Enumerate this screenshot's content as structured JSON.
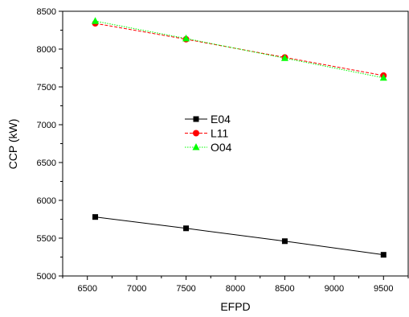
{
  "chart_data": {
    "type": "line",
    "xlabel": "EFPD",
    "ylabel": "CCP (kW)",
    "xlim": [
      6250,
      9750
    ],
    "ylim": [
      5000,
      8500
    ],
    "x_ticks": [
      6500,
      7000,
      7500,
      8000,
      8500,
      9000,
      9500
    ],
    "y_ticks": [
      5000,
      5500,
      6000,
      6500,
      7000,
      7500,
      8000,
      8500
    ],
    "x_tick_labels": [
      "6500",
      "7000",
      "7500",
      "8000",
      "8500",
      "9000",
      "9500"
    ],
    "y_tick_labels": [
      "5000",
      "5500",
      "6000",
      "6500",
      "7000",
      "7500",
      "8000",
      "8500"
    ],
    "legend_position": "center",
    "grid": false,
    "series": [
      {
        "name": "E04",
        "color": "#000000",
        "marker": "square",
        "line_style": "solid",
        "x": [
          6580,
          7500,
          8500,
          9500
        ],
        "y": [
          5780,
          5630,
          5460,
          5280
        ]
      },
      {
        "name": "L11",
        "color": "#ff0000",
        "marker": "circle",
        "line_style": "dashed",
        "x": [
          6580,
          7500,
          8500,
          9500
        ],
        "y": [
          8340,
          8130,
          7890,
          7650
        ]
      },
      {
        "name": "O04",
        "color": "#00ff00",
        "marker": "triangle",
        "line_style": "dotted",
        "x": [
          6580,
          7500,
          8500,
          9500
        ],
        "y": [
          8370,
          8140,
          7880,
          7620
        ]
      }
    ]
  }
}
